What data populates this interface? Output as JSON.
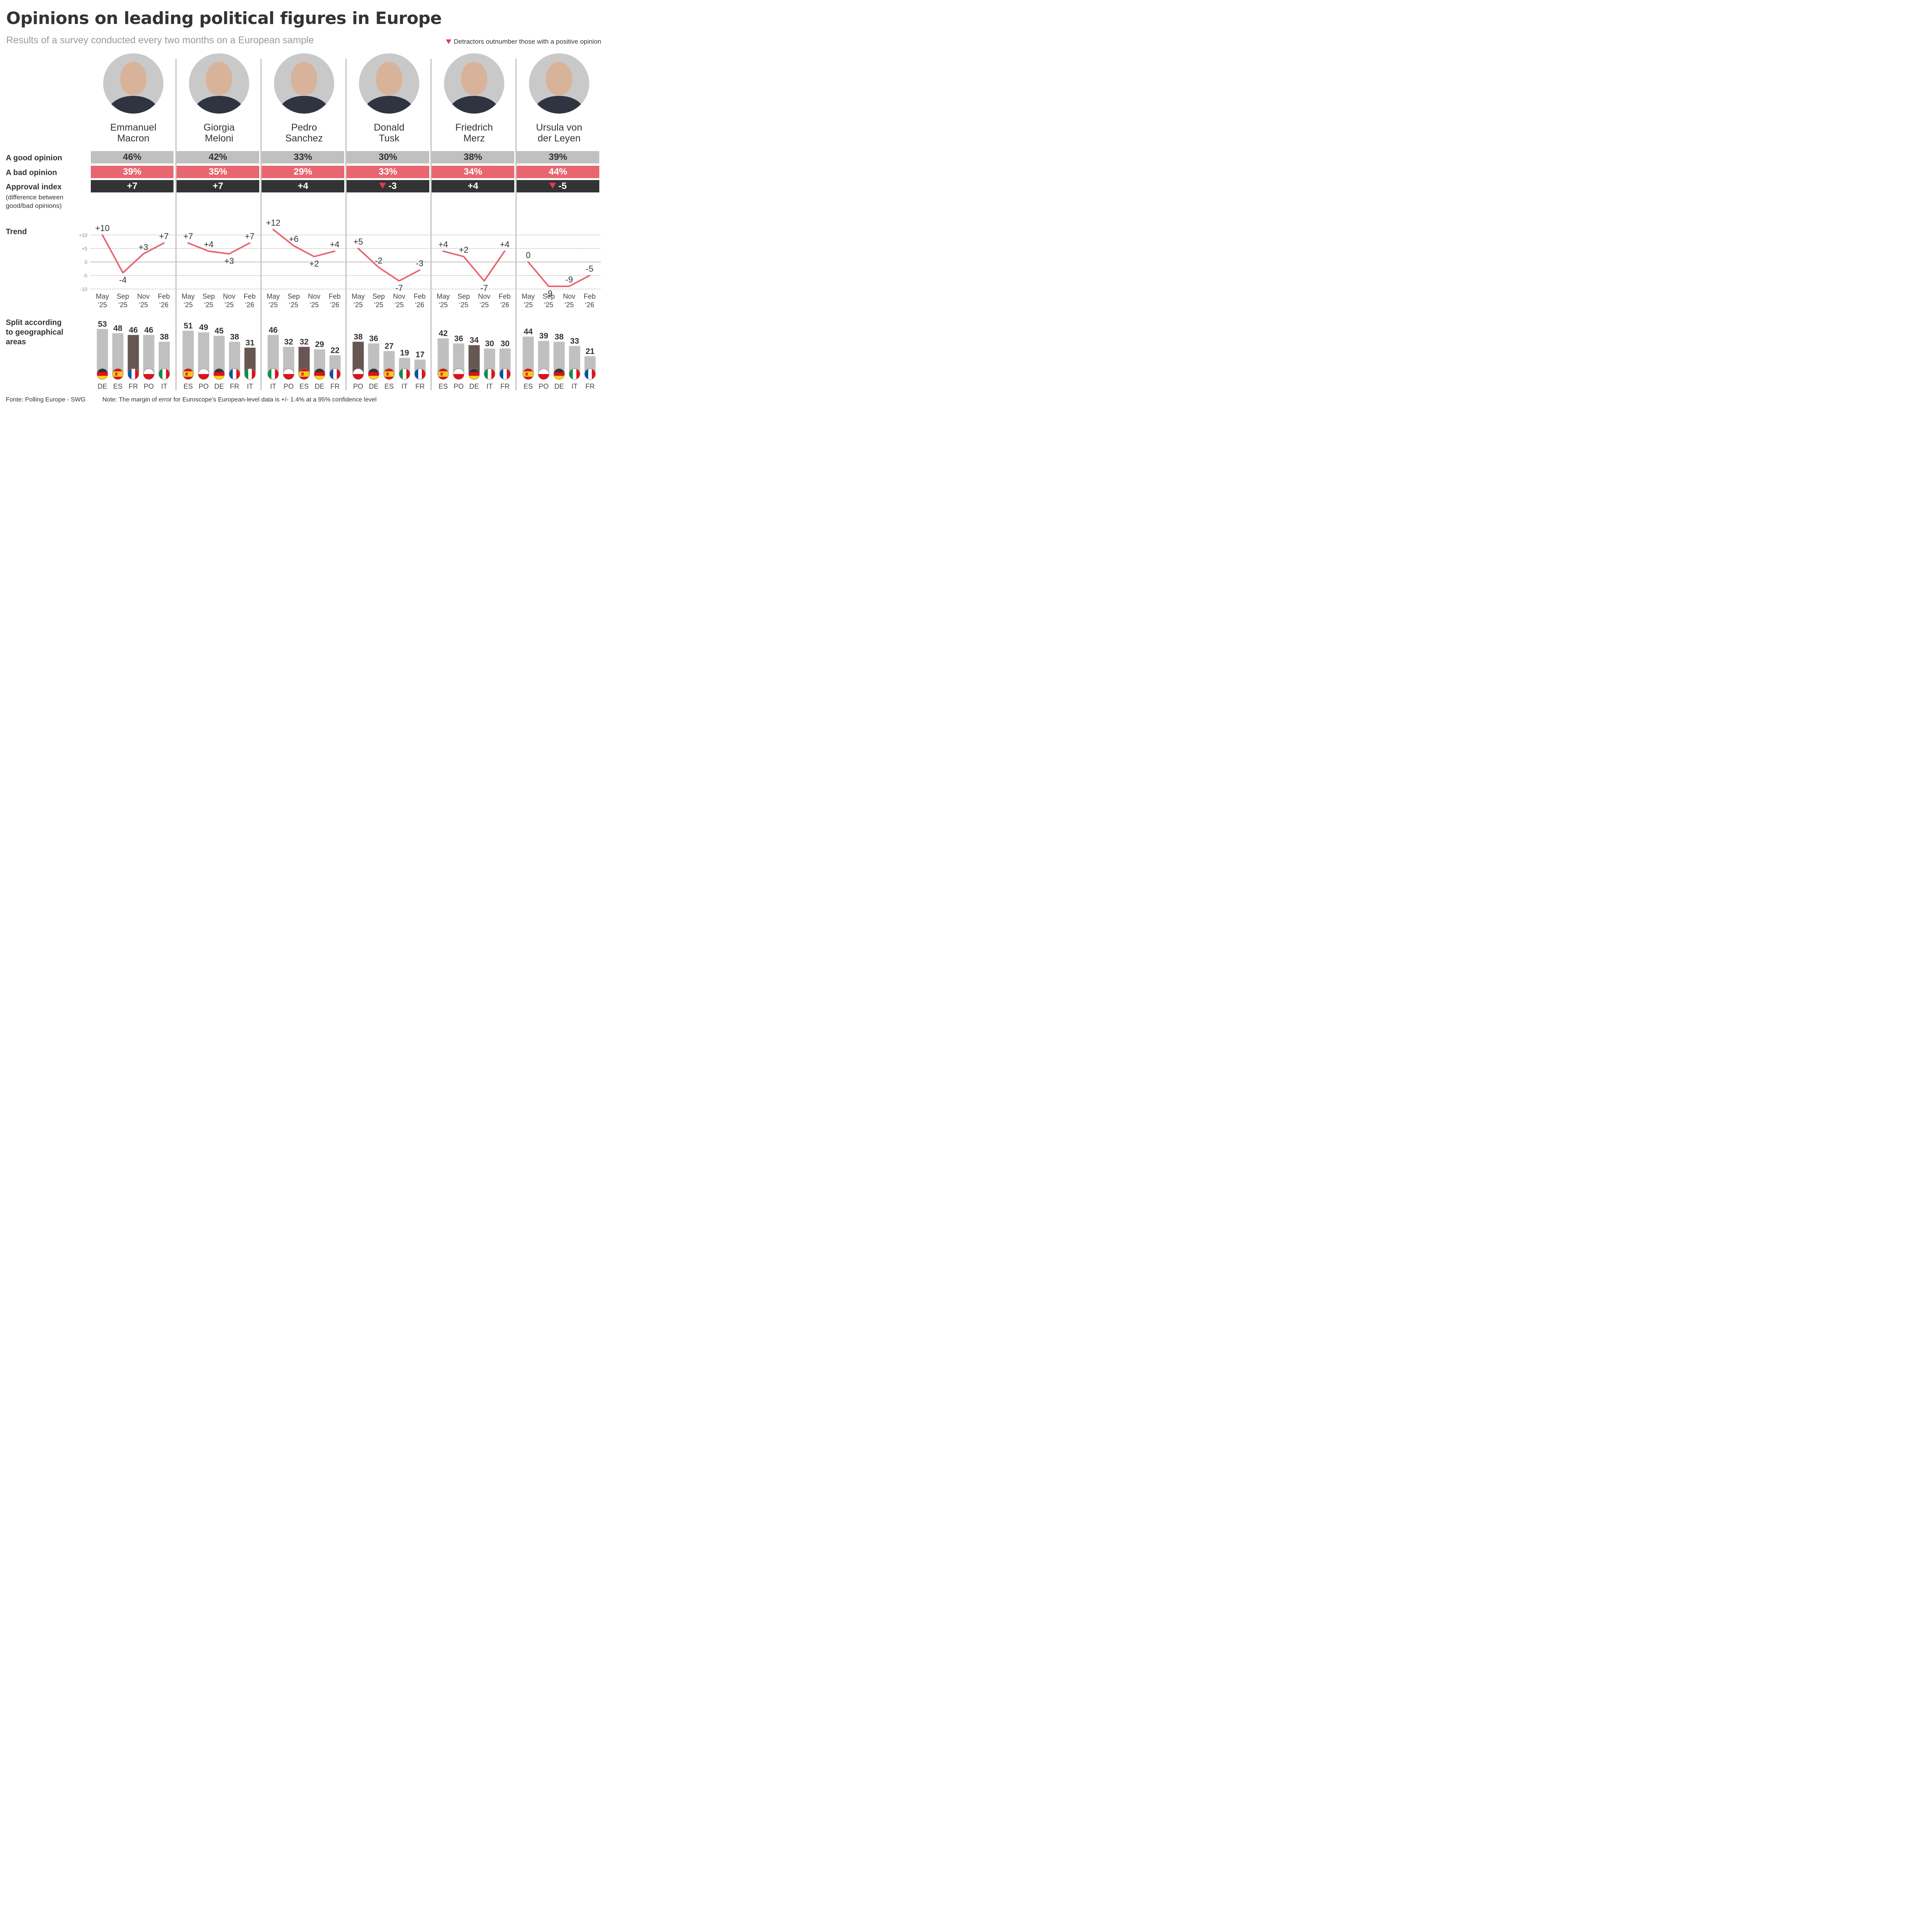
{
  "header": {
    "title": "Opinions on leading political figures in Europe",
    "subtitle": "Results of a survey conducted every two months on a European sample",
    "legend": "Detractors outnumber those with a positive opinion"
  },
  "row_labels": {
    "good": "A good opinion",
    "bad": "A bad opinion",
    "index": "Approval index",
    "index_note_1": "(difference between",
    "index_note_2": "good/bad opinions)",
    "trend": "Trend",
    "split_1": "Split according",
    "split_2": "to geographical",
    "split_3": "areas"
  },
  "footer": {
    "source": "Fonte: Polling Europe - SWG",
    "note": "Note: The margin of error for Euroscope’s European-level data is +/- 1.4% at a 95% confidence level"
  },
  "colors": {
    "good": "#c0c0c0",
    "bad": "#e86670",
    "index": "#333333",
    "trend_line": "#e86670",
    "bar_default": "#c0c0c0",
    "bar_home": "#675753",
    "detractor_marker": "#e23a52"
  },
  "chart_data": {
    "type": "table",
    "title": "Opinions on leading political figures in Europe",
    "trend": {
      "type": "line",
      "x": [
        "May '25",
        "Sep '25",
        "Nov '25",
        "Feb '26"
      ],
      "x_line1": [
        "May",
        "Sep",
        "Nov",
        "Feb"
      ],
      "x_line2": [
        "‘25",
        "‘25",
        "‘25",
        "‘26"
      ],
      "yticks": [
        "+10",
        "+5",
        "0",
        "-5",
        "-10"
      ],
      "yticks_values": [
        10,
        5,
        0,
        -5,
        -10
      ],
      "ylim": [
        -10,
        10
      ],
      "grid": true
    },
    "politicians": [
      {
        "first": "Emmanuel",
        "last": "Macron",
        "good": "46%",
        "bad": "39%",
        "index": "+7",
        "detractors": false,
        "trend": [
          10,
          -4,
          3,
          7
        ],
        "trend_labels": [
          "+10",
          "-4",
          "+3",
          "+7"
        ],
        "split": {
          "countries": [
            "DE",
            "ES",
            "FR",
            "PO",
            "IT"
          ],
          "values": [
            53,
            48,
            46,
            46,
            38
          ],
          "home": "FR"
        }
      },
      {
        "first": "Giorgia",
        "last": "Meloni",
        "good": "42%",
        "bad": "35%",
        "index": "+7",
        "detractors": false,
        "trend": [
          7,
          4,
          3,
          7
        ],
        "trend_labels": [
          "+7",
          "+4",
          "+3",
          "+7"
        ],
        "split": {
          "countries": [
            "ES",
            "PO",
            "DE",
            "FR",
            "IT"
          ],
          "values": [
            51,
            49,
            45,
            38,
            31
          ],
          "home": "IT"
        }
      },
      {
        "first": "Pedro",
        "last": "Sanchez",
        "good": "33%",
        "bad": "29%",
        "index": "+4",
        "detractors": false,
        "trend": [
          12,
          6,
          2,
          4
        ],
        "trend_labels": [
          "+12",
          "+6",
          "+2",
          "+4"
        ],
        "split": {
          "countries": [
            "IT",
            "PO",
            "ES",
            "DE",
            "FR"
          ],
          "values": [
            46,
            32,
            32,
            29,
            22
          ],
          "home": "ES"
        }
      },
      {
        "first": "Donald",
        "last": "Tusk",
        "good": "30%",
        "bad": "33%",
        "index": "-3",
        "detractors": true,
        "trend": [
          5,
          -2,
          -7,
          -3
        ],
        "trend_labels": [
          "+5",
          "-2",
          "-7",
          "-3"
        ],
        "split": {
          "countries": [
            "PO",
            "DE",
            "ES",
            "IT",
            "FR"
          ],
          "values": [
            38,
            36,
            27,
            19,
            17
          ],
          "home": "PO"
        }
      },
      {
        "first": "Friedrich",
        "last": "Merz",
        "good": "38%",
        "bad": "34%",
        "index": "+4",
        "detractors": false,
        "trend": [
          4,
          2,
          -7,
          4
        ],
        "trend_labels": [
          "+4",
          "+2",
          "-7",
          "+4"
        ],
        "split": {
          "countries": [
            "ES",
            "PO",
            "DE",
            "IT",
            "FR"
          ],
          "values": [
            42,
            36,
            34,
            30,
            30
          ],
          "home": "DE"
        }
      },
      {
        "first": "Ursula von",
        "last": "der Leyen",
        "good": "39%",
        "bad": "44%",
        "index": "-5",
        "detractors": true,
        "trend": [
          0,
          -9,
          -9,
          -5
        ],
        "trend_labels": [
          "0",
          "-9",
          "-9",
          "-5"
        ],
        "split": {
          "countries": [
            "ES",
            "PO",
            "DE",
            "IT",
            "FR"
          ],
          "values": [
            44,
            39,
            38,
            33,
            21
          ],
          "home": null
        }
      }
    ]
  }
}
